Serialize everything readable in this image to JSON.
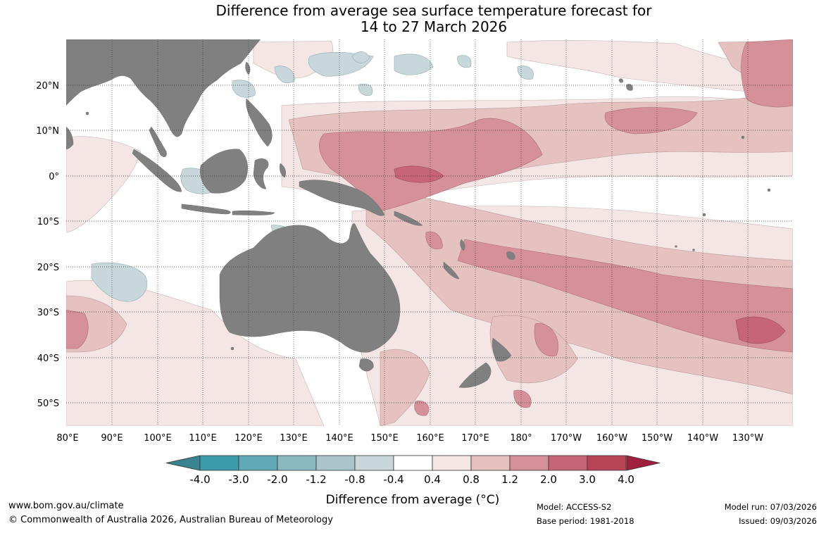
{
  "title": {
    "line1": "Difference from average sea surface temperature forecast for",
    "line2": "14 to 27 March 2026"
  },
  "map": {
    "lat_labels": [
      "20°N",
      "10°N",
      "0°",
      "10°S",
      "20°S",
      "30°S",
      "40°S",
      "50°S"
    ],
    "lon_labels": [
      "80°E",
      "90°E",
      "100°E",
      "110°E",
      "120°E",
      "130°E",
      "140°E",
      "150°E",
      "160°E",
      "170°E",
      "180°",
      "170°W",
      "160°W",
      "150°W",
      "140°W",
      "130°W"
    ],
    "land_color": "#808080",
    "ocean_color": "#ffffff"
  },
  "colorbar": {
    "tick_labels": [
      "-4.0",
      "-3.0",
      "-2.0",
      "-1.2",
      "-0.8",
      "-0.4",
      "0.4",
      "0.8",
      "1.2",
      "2.0",
      "3.0",
      "4.0"
    ],
    "colors": [
      "#3d9aab",
      "#62a9b6",
      "#8ab8c1",
      "#a9c5cb",
      "#c8d7da",
      "#ffffff",
      "#f3e6e5",
      "#e5c2c0",
      "#d6909a",
      "#c66577",
      "#b94455"
    ],
    "under_color": "#3a8390",
    "over_color": "#a0203e",
    "label": "Difference from average (°C)"
  },
  "footer": {
    "website": "www.bom.gov.au/climate",
    "copyright": "© Commonwealth of Australia 2026, Australian Bureau of Meteorology",
    "model": "Model: ACCESS-S2",
    "base_period": "Base period: 1981-2018",
    "model_run": "Model run: 07/03/2026",
    "issued": "Issued: 09/03/2026"
  }
}
